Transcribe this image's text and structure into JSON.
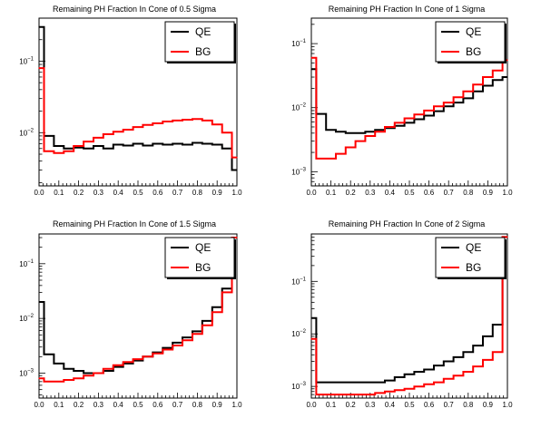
{
  "chart_data": [
    {
      "type": "line",
      "title": "Remaining PH Fraction In Cone of 0.5 Sigma",
      "xlabel": "",
      "ylabel": "",
      "xlim": [
        0,
        1
      ],
      "ylim": [
        0.0018,
        0.4
      ],
      "yscale": "log",
      "x_ticks": [
        "0.0",
        "0.1",
        "0.2",
        "0.3",
        "0.4",
        "0.5",
        "0.6",
        "0.7",
        "0.8",
        "0.9",
        "1.0"
      ],
      "y_ticks": [
        {
          "value": 0.1,
          "label": "10-1"
        },
        {
          "value": 0.01,
          "label": "10-2"
        }
      ],
      "legend": {
        "position": "top-right",
        "entries": [
          "QE",
          "BG"
        ]
      },
      "x": [
        0.0,
        0.05,
        0.1,
        0.15,
        0.2,
        0.25,
        0.3,
        0.35,
        0.4,
        0.45,
        0.5,
        0.55,
        0.6,
        0.65,
        0.7,
        0.75,
        0.8,
        0.85,
        0.9,
        0.95,
        1.0
      ],
      "series": [
        {
          "name": "QE",
          "color": "#000000",
          "values": [
            0.3,
            0.009,
            0.0065,
            0.006,
            0.0062,
            0.006,
            0.0065,
            0.006,
            0.0068,
            0.0066,
            0.007,
            0.0066,
            0.007,
            0.0068,
            0.007,
            0.0068,
            0.0072,
            0.007,
            0.0068,
            0.006,
            0.003
          ]
        },
        {
          "name": "BG",
          "color": "#ff0000",
          "values": [
            0.08,
            0.0055,
            0.0052,
            0.0055,
            0.0065,
            0.0075,
            0.0085,
            0.0095,
            0.0103,
            0.011,
            0.012,
            0.0128,
            0.0135,
            0.0143,
            0.0148,
            0.0152,
            0.0155,
            0.0148,
            0.013,
            0.01,
            0.0045
          ]
        }
      ]
    },
    {
      "type": "line",
      "title": "Remaining PH Fraction In Cone of 1 Sigma",
      "xlabel": "",
      "ylabel": "",
      "xlim": [
        0,
        1
      ],
      "ylim": [
        0.0006,
        0.25
      ],
      "yscale": "log",
      "x_ticks": [
        "0.0",
        "0.1",
        "0.2",
        "0.3",
        "0.4",
        "0.5",
        "0.6",
        "0.7",
        "0.8",
        "0.9",
        "1.0"
      ],
      "y_ticks": [
        {
          "value": 0.1,
          "label": "10-1"
        },
        {
          "value": 0.01,
          "label": "10-2"
        },
        {
          "value": 0.001,
          "label": "10-3"
        }
      ],
      "legend": {
        "position": "top-right",
        "entries": [
          "QE",
          "BG"
        ]
      },
      "x": [
        0.0,
        0.05,
        0.1,
        0.15,
        0.2,
        0.25,
        0.3,
        0.35,
        0.4,
        0.45,
        0.5,
        0.55,
        0.6,
        0.65,
        0.7,
        0.75,
        0.8,
        0.85,
        0.9,
        0.95,
        1.0
      ],
      "series": [
        {
          "name": "QE",
          "color": "#000000",
          "values": [
            0.04,
            0.008,
            0.0045,
            0.0042,
            0.004,
            0.004,
            0.0042,
            0.0045,
            0.0048,
            0.0052,
            0.0058,
            0.0066,
            0.0075,
            0.0088,
            0.0105,
            0.012,
            0.014,
            0.018,
            0.022,
            0.027,
            0.03
          ]
        },
        {
          "name": "BG",
          "color": "#ff0000",
          "values": [
            0.06,
            0.0016,
            0.0016,
            0.0019,
            0.0024,
            0.003,
            0.0036,
            0.0042,
            0.005,
            0.0058,
            0.0068,
            0.0078,
            0.009,
            0.0105,
            0.012,
            0.0145,
            0.018,
            0.023,
            0.03,
            0.038,
            0.055
          ]
        }
      ]
    },
    {
      "type": "line",
      "title": "Remaining PH Fraction In Cone of 1.5 Sigma",
      "xlabel": "",
      "ylabel": "",
      "xlim": [
        0,
        1
      ],
      "ylim": [
        0.00035,
        0.35
      ],
      "yscale": "log",
      "x_ticks": [
        "0.0",
        "0.1",
        "0.2",
        "0.3",
        "0.4",
        "0.5",
        "0.6",
        "0.7",
        "0.8",
        "0.9",
        "1.0"
      ],
      "y_ticks": [
        {
          "value": 0.1,
          "label": "10-1"
        },
        {
          "value": 0.01,
          "label": "10-2"
        },
        {
          "value": 0.001,
          "label": "10-3"
        }
      ],
      "legend": {
        "position": "top-right",
        "entries": [
          "QE",
          "BG"
        ]
      },
      "x": [
        0.0,
        0.05,
        0.1,
        0.15,
        0.2,
        0.25,
        0.3,
        0.35,
        0.4,
        0.45,
        0.5,
        0.55,
        0.6,
        0.65,
        0.7,
        0.75,
        0.8,
        0.85,
        0.9,
        0.95,
        1.0
      ],
      "series": [
        {
          "name": "QE",
          "color": "#000000",
          "values": [
            0.02,
            0.0022,
            0.0015,
            0.0012,
            0.0011,
            0.001,
            0.001,
            0.0011,
            0.0013,
            0.0015,
            0.0017,
            0.002,
            0.0024,
            0.0029,
            0.0036,
            0.0045,
            0.0058,
            0.009,
            0.016,
            0.035,
            0.3
          ]
        },
        {
          "name": "BG",
          "color": "#ff0000",
          "values": [
            0.0008,
            0.0007,
            0.0007,
            0.00075,
            0.0008,
            0.0009,
            0.001,
            0.0012,
            0.0014,
            0.0016,
            0.0018,
            0.002,
            0.0023,
            0.0027,
            0.0032,
            0.004,
            0.0052,
            0.0075,
            0.013,
            0.03,
            0.3
          ]
        }
      ]
    },
    {
      "type": "line",
      "title": "Remaining PH Fraction In Cone of 2 Sigma",
      "xlabel": "",
      "ylabel": "",
      "xlim": [
        0,
        1
      ],
      "ylim": [
        0.0006,
        0.8
      ],
      "yscale": "log",
      "x_ticks": [
        "0.0",
        "0.1",
        "0.2",
        "0.3",
        "0.4",
        "0.5",
        "0.6",
        "0.7",
        "0.8",
        "0.9",
        "1.0"
      ],
      "y_ticks": [
        {
          "value": 0.1,
          "label": "10-1"
        },
        {
          "value": 0.01,
          "label": "10-2"
        },
        {
          "value": 0.001,
          "label": "10-3"
        }
      ],
      "legend": {
        "position": "top-right",
        "entries": [
          "QE",
          "BG"
        ]
      },
      "x": [
        0.0,
        0.05,
        0.1,
        0.15,
        0.2,
        0.25,
        0.3,
        0.35,
        0.4,
        0.45,
        0.5,
        0.55,
        0.6,
        0.65,
        0.7,
        0.75,
        0.8,
        0.85,
        0.9,
        0.95,
        1.0
      ],
      "series": [
        {
          "name": "QE",
          "color": "#000000",
          "values": [
            0.02,
            0.0012,
            0.0012,
            0.0012,
            0.0012,
            0.0012,
            0.0012,
            0.0012,
            0.0013,
            0.0015,
            0.0017,
            0.0019,
            0.0021,
            0.0025,
            0.003,
            0.0036,
            0.0045,
            0.006,
            0.009,
            0.015,
            0.7
          ]
        },
        {
          "name": "BG",
          "color": "#ff0000",
          "values": [
            0.008,
            0.0007,
            0.0007,
            0.0007,
            0.0007,
            0.0007,
            0.0007,
            0.00075,
            0.0008,
            0.00085,
            0.0009,
            0.001,
            0.0011,
            0.0012,
            0.0014,
            0.0016,
            0.0019,
            0.0024,
            0.0032,
            0.0045,
            0.7
          ]
        }
      ]
    }
  ]
}
